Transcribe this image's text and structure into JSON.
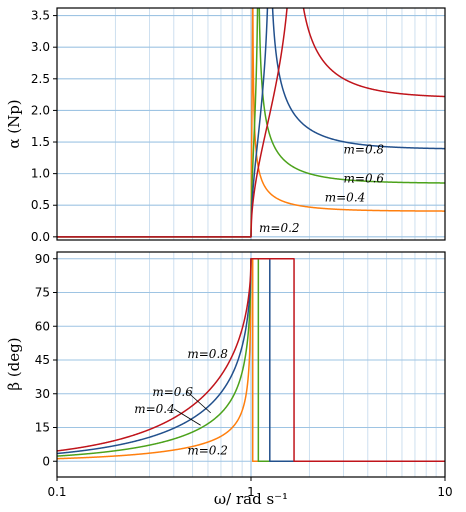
{
  "chart_data": [
    {
      "type": "line",
      "ylabel": "α (Np)",
      "xlabel": "",
      "x_scale": "log",
      "xlim": [
        0.1,
        10
      ],
      "ylim": [
        -0.05,
        3.62
      ],
      "yticks": [
        "0.0",
        "0.5",
        "1.0",
        "1.5",
        "2.0",
        "2.5",
        "3.0",
        "3.5"
      ],
      "grid": true,
      "series": [
        {
          "name": "m=0.2",
          "color": "#ff7f0e",
          "m": 0.2
        },
        {
          "name": "m=0.4",
          "color": "#4ca21b",
          "m": 0.4
        },
        {
          "name": "m=0.6",
          "color": "#22508c",
          "m": 0.6
        },
        {
          "name": "m=0.8",
          "color": "#c0141b",
          "m": 0.8
        }
      ],
      "annotations": [
        {
          "text": "m=0.8",
          "x": 3.0,
          "y": 1.32
        },
        {
          "text": "m=0.6",
          "x": 3.0,
          "y": 0.86
        },
        {
          "text": "m=0.4",
          "x": 2.4,
          "y": 0.56
        },
        {
          "text": "m=0.2",
          "x": 1.1,
          "y": 0.08
        }
      ]
    },
    {
      "type": "line",
      "ylabel": "β (deg)",
      "xlabel": "ω/ rad s⁻¹",
      "x_scale": "log",
      "xlim": [
        0.1,
        10
      ],
      "ylim": [
        -7,
        93
      ],
      "yticks": [
        "0",
        "15",
        "30",
        "45",
        "60",
        "75",
        "90"
      ],
      "xticks": [
        "0.1",
        "1",
        "10"
      ],
      "grid": true,
      "series": [
        {
          "name": "m=0.2",
          "color": "#ff7f0e",
          "m": 0.2
        },
        {
          "name": "m=0.4",
          "color": "#4ca21b",
          "m": 0.4
        },
        {
          "name": "m=0.6",
          "color": "#22508c",
          "m": 0.6
        },
        {
          "name": "m=0.8",
          "color": "#c0141b",
          "m": 0.8
        }
      ],
      "annotations": [
        {
          "text": "m=0.8",
          "x": 0.47,
          "y": 46
        },
        {
          "text": "m=0.6",
          "x": 0.31,
          "y": 29
        },
        {
          "text": "m=0.4",
          "x": 0.25,
          "y": 21.5
        },
        {
          "text": "m=0.2",
          "x": 0.47,
          "y": 3
        }
      ]
    }
  ]
}
